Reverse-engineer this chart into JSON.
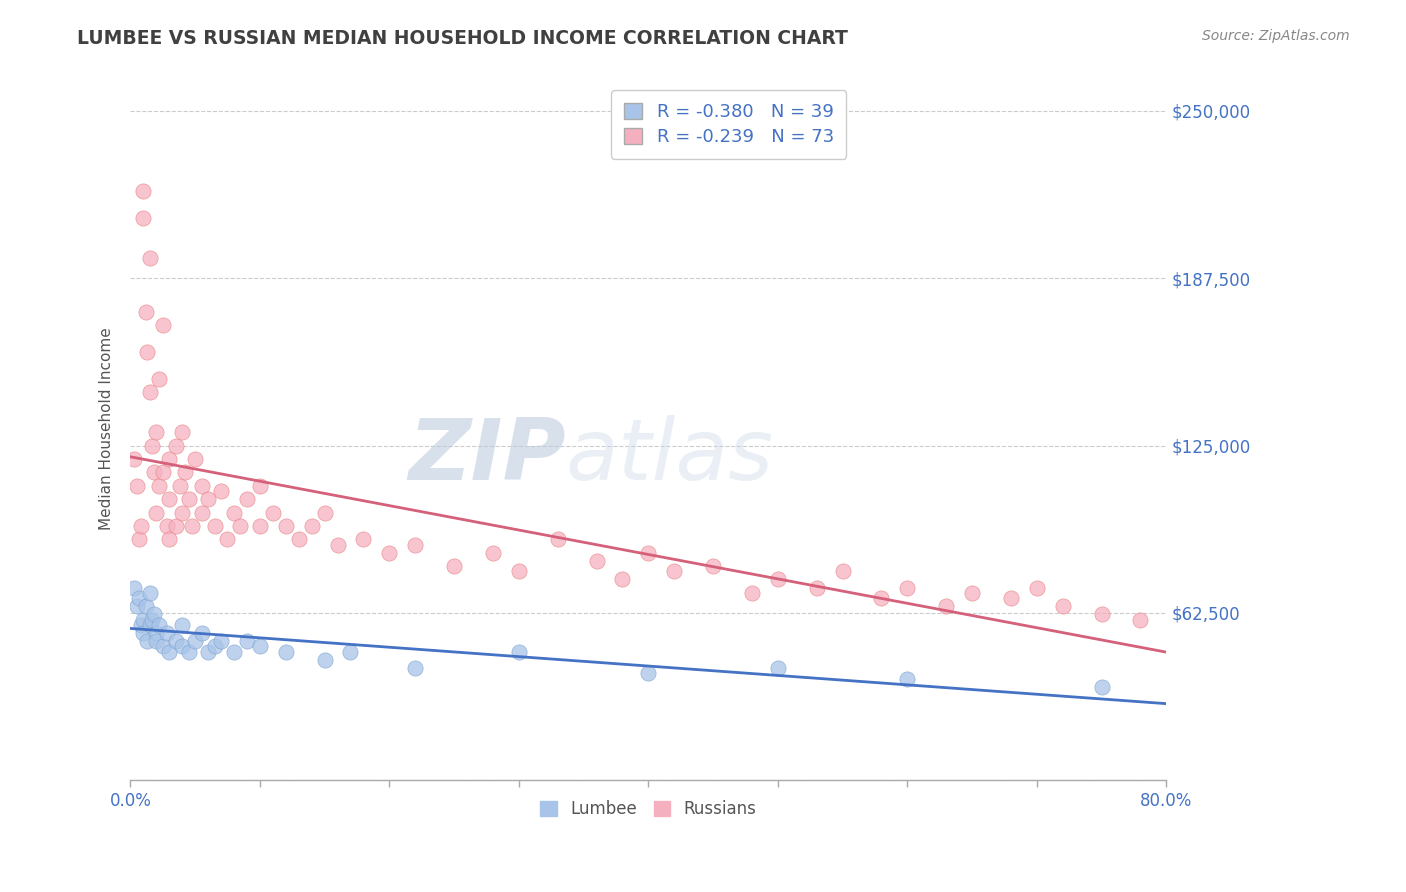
{
  "title": "LUMBEE VS RUSSIAN MEDIAN HOUSEHOLD INCOME CORRELATION CHART",
  "source": "Source: ZipAtlas.com",
  "ylabel": "Median Household Income",
  "xlim": [
    0.0,
    0.8
  ],
  "ylim": [
    0,
    262500
  ],
  "yticks": [
    0,
    62500,
    125000,
    187500,
    250000
  ],
  "ytick_labels": [
    "",
    "$62,500",
    "$125,000",
    "$187,500",
    "$250,000"
  ],
  "xtick_left_label": "0.0%",
  "xtick_right_label": "80.0%",
  "xtick_positions": [
    0.0,
    0.1,
    0.2,
    0.3,
    0.4,
    0.5,
    0.6,
    0.7,
    0.8
  ],
  "legend_labels": [
    "Lumbee",
    "Russians"
  ],
  "r_lumbee": "-0.380",
  "n_lumbee": "39",
  "r_russian": "-0.239",
  "n_russian": "73",
  "lumbee_color": "#a8c4e8",
  "russian_color": "#f5b0c0",
  "lumbee_edge_color": "#7aa0d0",
  "russian_edge_color": "#e88080",
  "lumbee_line_color": "#4472c4",
  "russian_line_color": "#d4607a",
  "background_color": "#ffffff",
  "grid_color": "#cccccc",
  "axis_label_color": "#4472c4",
  "title_color": "#404040",
  "lumbee_x": [
    0.003,
    0.005,
    0.007,
    0.008,
    0.01,
    0.01,
    0.012,
    0.013,
    0.015,
    0.015,
    0.017,
    0.018,
    0.02,
    0.02,
    0.022,
    0.025,
    0.028,
    0.03,
    0.035,
    0.04,
    0.04,
    0.045,
    0.05,
    0.055,
    0.06,
    0.065,
    0.07,
    0.08,
    0.09,
    0.1,
    0.12,
    0.15,
    0.17,
    0.22,
    0.3,
    0.4,
    0.5,
    0.6,
    0.75
  ],
  "lumbee_y": [
    72000,
    65000,
    68000,
    58000,
    60000,
    55000,
    65000,
    52000,
    58000,
    70000,
    60000,
    62000,
    55000,
    52000,
    58000,
    50000,
    55000,
    48000,
    52000,
    50000,
    58000,
    48000,
    52000,
    55000,
    48000,
    50000,
    52000,
    48000,
    52000,
    50000,
    48000,
    45000,
    48000,
    42000,
    48000,
    40000,
    42000,
    38000,
    35000
  ],
  "russian_x": [
    0.003,
    0.005,
    0.007,
    0.008,
    0.01,
    0.01,
    0.012,
    0.013,
    0.015,
    0.015,
    0.017,
    0.018,
    0.02,
    0.02,
    0.022,
    0.022,
    0.025,
    0.025,
    0.028,
    0.03,
    0.03,
    0.03,
    0.035,
    0.035,
    0.038,
    0.04,
    0.04,
    0.042,
    0.045,
    0.048,
    0.05,
    0.055,
    0.055,
    0.06,
    0.065,
    0.07,
    0.075,
    0.08,
    0.085,
    0.09,
    0.1,
    0.1,
    0.11,
    0.12,
    0.13,
    0.14,
    0.15,
    0.16,
    0.18,
    0.2,
    0.22,
    0.25,
    0.28,
    0.3,
    0.33,
    0.36,
    0.38,
    0.4,
    0.42,
    0.45,
    0.48,
    0.5,
    0.53,
    0.55,
    0.58,
    0.6,
    0.63,
    0.65,
    0.68,
    0.7,
    0.72,
    0.75,
    0.78
  ],
  "russian_y": [
    120000,
    110000,
    90000,
    95000,
    220000,
    210000,
    175000,
    160000,
    145000,
    195000,
    125000,
    115000,
    130000,
    100000,
    150000,
    110000,
    170000,
    115000,
    95000,
    120000,
    105000,
    90000,
    125000,
    95000,
    110000,
    130000,
    100000,
    115000,
    105000,
    95000,
    120000,
    110000,
    100000,
    105000,
    95000,
    108000,
    90000,
    100000,
    95000,
    105000,
    95000,
    110000,
    100000,
    95000,
    90000,
    95000,
    100000,
    88000,
    90000,
    85000,
    88000,
    80000,
    85000,
    78000,
    90000,
    82000,
    75000,
    85000,
    78000,
    80000,
    70000,
    75000,
    72000,
    78000,
    68000,
    72000,
    65000,
    70000,
    68000,
    72000,
    65000,
    62000,
    60000
  ]
}
